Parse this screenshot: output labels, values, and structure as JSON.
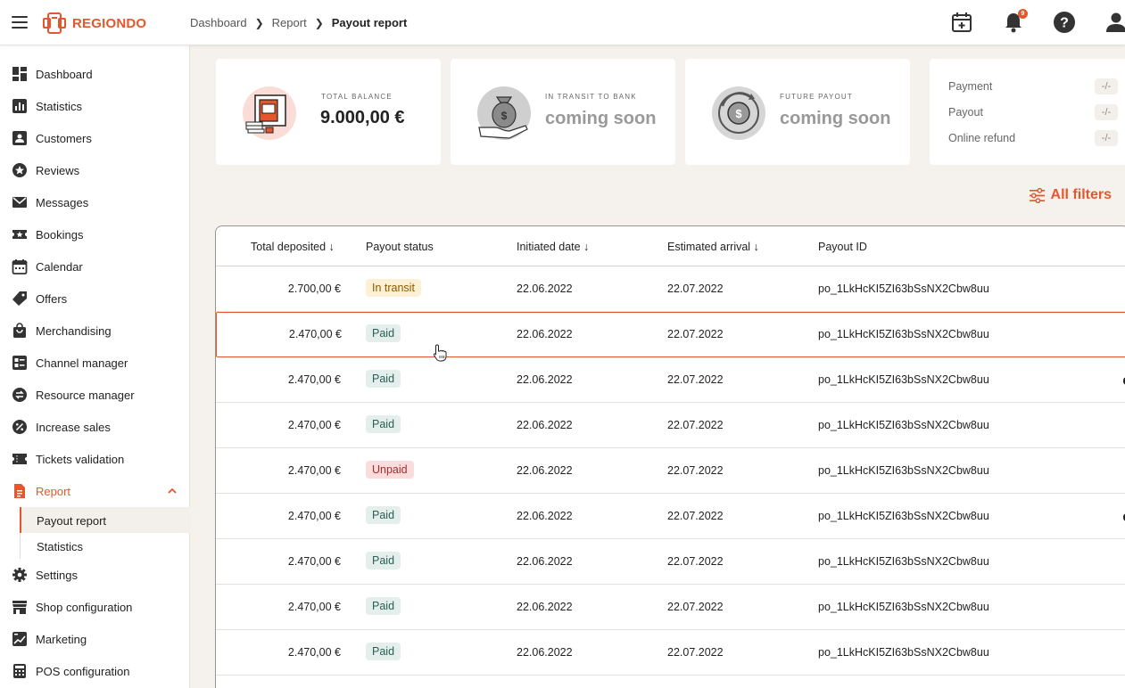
{
  "app": {
    "logo_text": "REGIONDO"
  },
  "breadcrumb": {
    "items": [
      "Dashboard",
      "Report"
    ],
    "current": "Payout report"
  },
  "topbar": {
    "notification_count": "9"
  },
  "sidebar": {
    "items": [
      {
        "label": "Dashboard",
        "icon": "dashboard-icon"
      },
      {
        "label": "Statistics",
        "icon": "bar-chart-icon"
      },
      {
        "label": "Customers",
        "icon": "customer-card-icon"
      },
      {
        "label": "Reviews",
        "icon": "star-circle-icon"
      },
      {
        "label": "Messages",
        "icon": "envelope-icon"
      },
      {
        "label": "Bookings",
        "icon": "ticket-star-icon"
      },
      {
        "label": "Calendar",
        "icon": "calendar-icon"
      },
      {
        "label": "Offers",
        "icon": "tag-icon"
      },
      {
        "label": "Merchandising",
        "icon": "shopping-bag-icon"
      },
      {
        "label": "Channel manager",
        "icon": "channel-icon"
      },
      {
        "label": "Resource manager",
        "icon": "swap-icon"
      },
      {
        "label": "Increase sales",
        "icon": "percent-icon"
      },
      {
        "label": "Tickets validation",
        "icon": "ticket-icon"
      },
      {
        "label": "Report",
        "icon": "document-icon"
      }
    ],
    "report_sub": [
      "Payout report",
      "Statistics"
    ],
    "bottom_items": [
      {
        "label": "Settings",
        "icon": "gear-icon"
      },
      {
        "label": "Shop configuration",
        "icon": "storefront-icon"
      },
      {
        "label": "Marketing",
        "icon": "marketing-icon"
      },
      {
        "label": "POS configuration",
        "icon": "calculator-icon"
      }
    ]
  },
  "cards": {
    "balance": {
      "label": "TOTAL BALANCE",
      "value": "9.000,00 €"
    },
    "transit": {
      "label": "IN TRANSIT TO BANK",
      "value": "coming soon"
    },
    "future": {
      "label": "FUTURE PAYOUT",
      "value": "coming soon"
    },
    "summary": [
      {
        "label": "Payment",
        "value": "-/-"
      },
      {
        "label": "Payout",
        "value": "-/-"
      },
      {
        "label": "Online refund",
        "value": "-/-"
      }
    ]
  },
  "filters": {
    "label": "All filters"
  },
  "table": {
    "headers": [
      "Total deposited ↓",
      "Payout status",
      "Initiated date ↓",
      "Estimated arrival ↓",
      "Payout ID"
    ],
    "rows": [
      {
        "amount": "2.700,00 €",
        "status": "In transit",
        "kind": "transit",
        "initiated": "22.06.2022",
        "arrival": "22.07.2022",
        "id": "po_1LkHcKI5ZI63bSsNX2Cbw8uu"
      },
      {
        "amount": "2.470,00 €",
        "status": "Paid",
        "kind": "paid",
        "initiated": "22.06.2022",
        "arrival": "22.07.2022",
        "id": "po_1LkHcKI5ZI63bSsNX2Cbw8uu"
      },
      {
        "amount": "2.470,00 €",
        "status": "Paid",
        "kind": "paid",
        "initiated": "22.06.2022",
        "arrival": "22.07.2022",
        "id": "po_1LkHcKI5ZI63bSsNX2Cbw8uu"
      },
      {
        "amount": "2.470,00 €",
        "status": "Paid",
        "kind": "paid",
        "initiated": "22.06.2022",
        "arrival": "22.07.2022",
        "id": "po_1LkHcKI5ZI63bSsNX2Cbw8uu"
      },
      {
        "amount": "2.470,00 €",
        "status": "Unpaid",
        "kind": "unpaid",
        "initiated": "22.06.2022",
        "arrival": "22.07.2022",
        "id": "po_1LkHcKI5ZI63bSsNX2Cbw8uu"
      },
      {
        "amount": "2.470,00 €",
        "status": "Paid",
        "kind": "paid",
        "initiated": "22.06.2022",
        "arrival": "22.07.2022",
        "id": "po_1LkHcKI5ZI63bSsNX2Cbw8uu"
      },
      {
        "amount": "2.470,00 €",
        "status": "Paid",
        "kind": "paid",
        "initiated": "22.06.2022",
        "arrival": "22.07.2022",
        "id": "po_1LkHcKI5ZI63bSsNX2Cbw8uu"
      },
      {
        "amount": "2.470,00 €",
        "status": "Paid",
        "kind": "paid",
        "initiated": "22.06.2022",
        "arrival": "22.07.2022",
        "id": "po_1LkHcKI5ZI63bSsNX2Cbw8uu"
      },
      {
        "amount": "2.470,00 €",
        "status": "Paid",
        "kind": "paid",
        "initiated": "22.06.2022",
        "arrival": "22.07.2022",
        "id": "po_1LkHcKI5ZI63bSsNX2Cbw8uu"
      }
    ]
  },
  "colors": {
    "accent": "#e4572e",
    "background": "#f5f1ec"
  }
}
